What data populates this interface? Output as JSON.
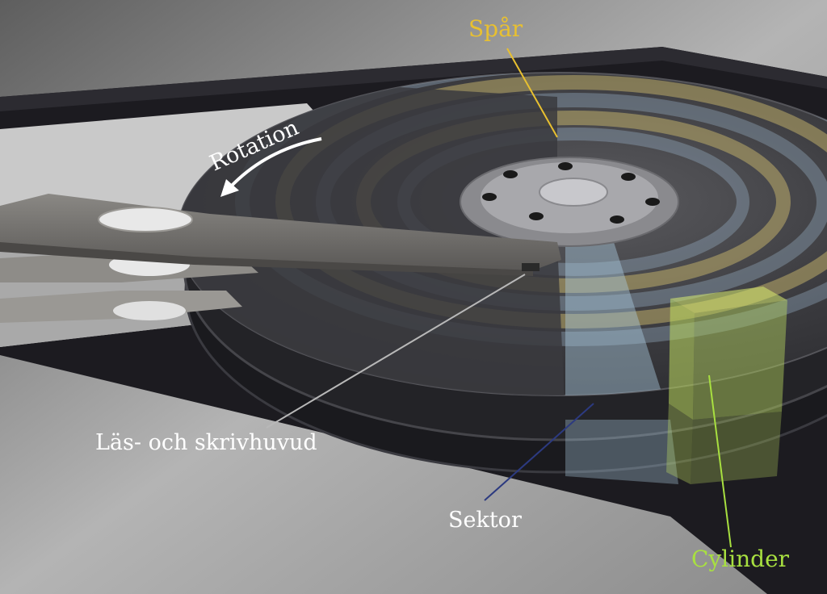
{
  "labels": {
    "track": "Spår",
    "rotation": "Rotation",
    "head": "Läs- och skrivhuvud",
    "sector": "Sektor",
    "cylinder": "Cylinder"
  },
  "colors": {
    "track": "#e8c030",
    "sector": "#2c3a80",
    "cylinder": "#a8e040",
    "text_light": "#ffffff"
  }
}
